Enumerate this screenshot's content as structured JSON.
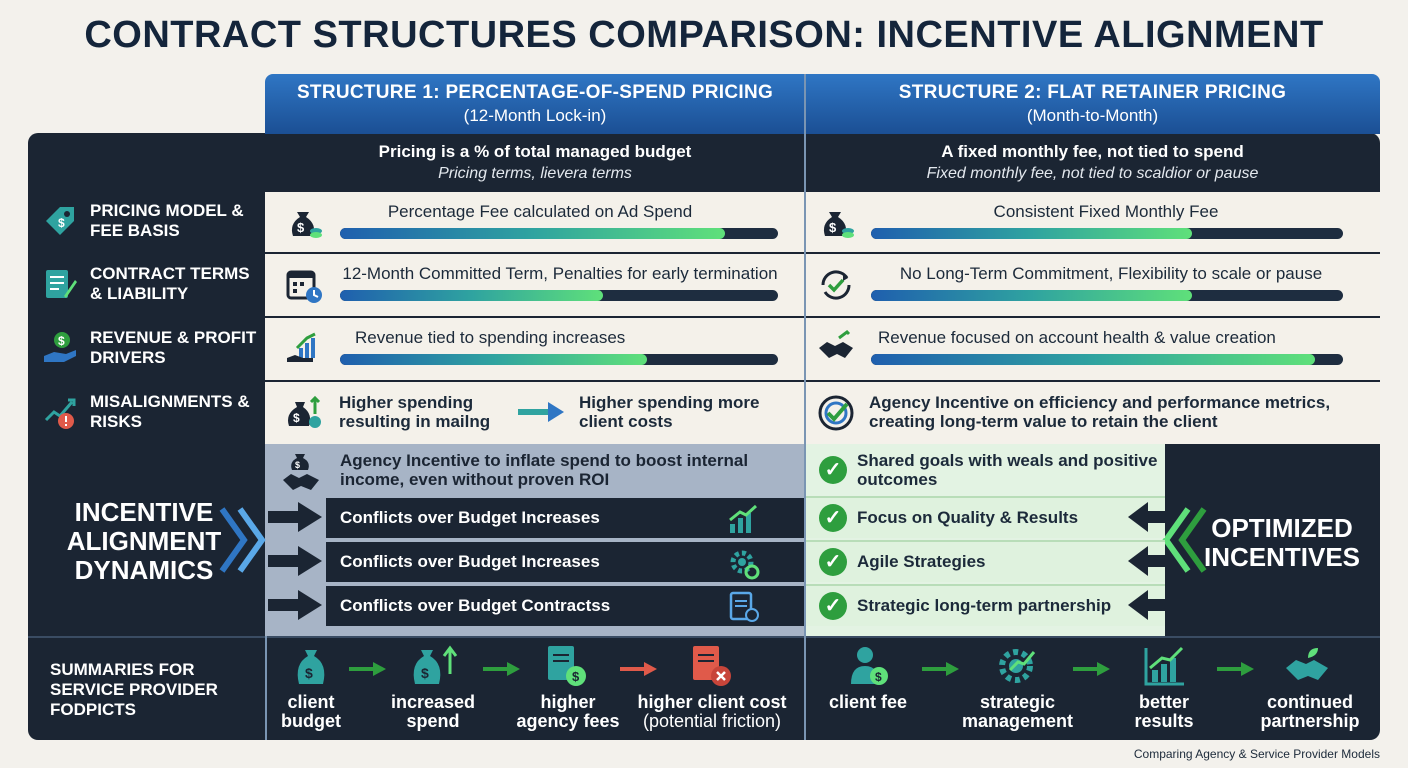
{
  "title": "CONTRACT STRUCTURES COMPARISON: INCENTIVE ALIGNMENT",
  "structure1": {
    "title": "STRUCTURE 1: PERCENTAGE-OF-SPEND PRICING",
    "subtitle": "(12-Month Lock-in)",
    "desc": "Pricing is a % of total managed budget",
    "desc2": "Pricing terms, lievera terms"
  },
  "structure2": {
    "title": "STRUCTURE 2: FLAT RETAINER PRICING",
    "subtitle": "(Month-to-Month)",
    "desc": "A fixed monthly fee, not tied to spend",
    "desc2": "Fixed monthly fee, not tied to scaldior or pause"
  },
  "rows": [
    {
      "label": "PRICING MODEL & FEE BASIS",
      "icon": "price-tag-icon",
      "s1": "Percentage Fee calculated on Ad Spend",
      "s1_icon": "money-bag-icon",
      "s1_level": 0.88,
      "s2": "Consistent Fixed Monthly Fee",
      "s2_icon": "money-bag-icon",
      "s2_level": 0.68
    },
    {
      "label": "CONTRACT TERMS & LIABILITY",
      "icon": "document-pen-icon",
      "s1": "12-Month Committed Term, Penalties for early termination",
      "s1_icon": "calendar-clock-icon",
      "s1_level": 0.6,
      "s2": "No Long-Term Commitment, Flexibility to scale or pause",
      "s2_icon": "refresh-check-icon",
      "s2_level": 0.68
    },
    {
      "label": "REVENUE & PROFIT DRIVERS",
      "icon": "hand-coin-icon",
      "s1": "Revenue tied to spending increases",
      "s1_icon": "growth-chart-icon",
      "s1_level": 0.7,
      "s2": "Revenue focused on account health & value creation",
      "s2_icon": "handshake-icon",
      "s2_level": 0.94
    },
    {
      "label": "MISALIGNMENTS & RISKS",
      "icon": "trend-warning-icon"
    }
  ],
  "misalign": {
    "s1_a": "Higher spending resulting in mailng",
    "s1_b": "Higher spending more client costs",
    "s2": "Agency Incentive on efficiency and performance metrics, creating long-term value to retain the client"
  },
  "dynamics": {
    "left_label": "INCENTIVE ALIGNMENT DYNAMICS",
    "right_label": "OPTIMIZED INCENTIVES",
    "s1_items": [
      "Agency Incentive to inflate spend to boost internal income, even without proven ROI",
      "Conflicts over Budget Increases",
      "Conflicts over Budget Increases",
      "Conflicts over Budget Contractss"
    ],
    "s2_items": [
      "Shared goals with weals and positive outcomes",
      "Focus on Quality & Results",
      "Agile Strategies",
      "Strategic long-term partnership"
    ]
  },
  "summary": {
    "label": "SUMMARIES FOR SERVICE PROVIDER FODPICTS",
    "s1_steps": [
      {
        "line1": "client",
        "line2": "budget"
      },
      {
        "line1": "increased",
        "line2": "spend"
      },
      {
        "line1": "higher",
        "line2": "agency fees"
      },
      {
        "line1": "higher client cost",
        "line2": "(potential friction)"
      }
    ],
    "s2_steps": [
      {
        "line1": "client fee",
        "line2": ""
      },
      {
        "line1": "strategic",
        "line2": "management"
      },
      {
        "line1": "better",
        "line2": "results"
      },
      {
        "line1": "continued",
        "line2": "partnership"
      }
    ]
  },
  "footer": "Comparing Agency & Service Provider Models",
  "colors": {
    "header_blue": "#2f76c4",
    "dark": "#1b2533",
    "green": "#2e9e3e",
    "red": "#e05a4a"
  }
}
